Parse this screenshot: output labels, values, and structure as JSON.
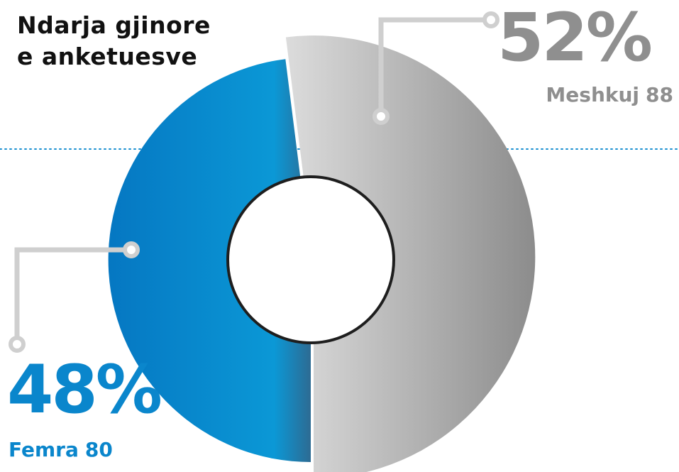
{
  "chart_data": {
    "type": "pie",
    "title": [
      "Ndarja gjinore",
      "e anketuesve"
    ],
    "slices": [
      {
        "label": "Meshkuj",
        "count": 88,
        "percent": "52%",
        "value": 52,
        "color": "#a9a9a9"
      },
      {
        "label": "Femra",
        "count": 80,
        "percent": "48%",
        "value": 48,
        "color": "#0a86cc"
      }
    ],
    "style": {
      "donut": true,
      "legend": "none",
      "grid": false
    }
  }
}
